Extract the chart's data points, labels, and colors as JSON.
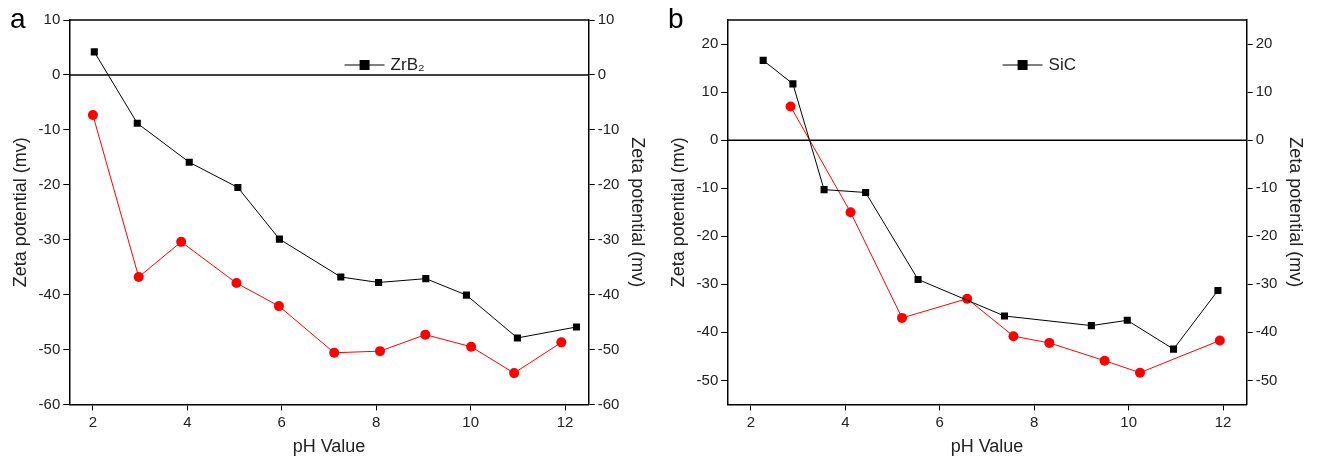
{
  "chart_data": [
    {
      "type": "line",
      "annotations": [
        "a"
      ],
      "xlabel": "pH Value",
      "ylabel": "Zeta potential (mv)",
      "y2label": "Zeta potential (mv)",
      "xlim": [
        1.5,
        12.5
      ],
      "xticks": [
        2,
        4,
        6,
        8,
        10,
        12
      ],
      "ylim": [
        -60,
        10
      ],
      "yticks": [
        -60,
        -50,
        -40,
        -30,
        -20,
        -10,
        0,
        10
      ],
      "y2lim": [
        -60,
        10
      ],
      "y2ticks": [
        -60,
        -50,
        -40,
        -30,
        -20,
        -10,
        0,
        10
      ],
      "ref_lines": [
        {
          "axis": "y",
          "value": 0,
          "color": "#000000"
        }
      ],
      "legend": "top right",
      "grid": false,
      "series": [
        {
          "name": "ZrB₂",
          "color": "#000000",
          "marker": "square",
          "x": [
            2.03,
            2.94,
            4.04,
            5.07,
            5.95,
            7.25,
            8.05,
            9.05,
            9.91,
            10.99,
            12.24
          ],
          "values": [
            4.2,
            -8.8,
            -15.9,
            -20.5,
            -29.9,
            -36.8,
            -37.8,
            -37.1,
            -40.1,
            -47.9,
            -45.9
          ]
        },
        {
          "color": "#ff0000",
          "marker": "circle",
          "x": [
            2.0,
            2.97,
            3.87,
            5.04,
            5.94,
            7.11,
            8.08,
            9.04,
            10.01,
            10.92,
            11.92
          ],
          "values": [
            -7.3,
            -36.8,
            -30.4,
            -37.9,
            -42.1,
            -50.6,
            -50.3,
            -47.3,
            -49.5,
            -54.3,
            -48.7
          ]
        }
      ]
    },
    {
      "type": "line",
      "annotations": [
        "b"
      ],
      "xlabel": "pH Value",
      "ylabel": "Zeta potential (mv)",
      "y2label": "Zeta potential (mv)",
      "xlim": [
        1.5,
        12.5
      ],
      "xticks": [
        2,
        4,
        6,
        8,
        10,
        12
      ],
      "ylim": [
        -55,
        25
      ],
      "yticks": [
        -50,
        -40,
        -30,
        -20,
        -10,
        0,
        10,
        20
      ],
      "y2lim": [
        -55,
        25
      ],
      "y2ticks": [
        -50,
        -40,
        -30,
        -20,
        -10,
        0,
        10,
        20
      ],
      "ref_lines": [
        {
          "axis": "y",
          "value": 0,
          "color": "#000000"
        }
      ],
      "legend": "top right",
      "grid": false,
      "series": [
        {
          "name": "SiC",
          "color": "#000000",
          "marker": "square",
          "x": [
            2.26,
            2.89,
            3.55,
            4.43,
            5.54,
            7.37,
            9.21,
            9.97,
            10.95,
            11.89
          ],
          "values": [
            16.6,
            11.7,
            -10.3,
            -10.9,
            -29.0,
            -36.6,
            -38.6,
            -37.5,
            -43.5,
            -31.3
          ]
        },
        {
          "color": "#ff0000",
          "marker": "circle",
          "x": [
            2.84,
            4.11,
            5.2,
            6.58,
            7.56,
            8.32,
            9.49,
            10.24,
            11.93
          ],
          "values": [
            7.0,
            -15.0,
            -37.0,
            -33.0,
            -40.8,
            -42.2,
            -45.9,
            -48.4,
            -41.7
          ]
        }
      ]
    }
  ]
}
